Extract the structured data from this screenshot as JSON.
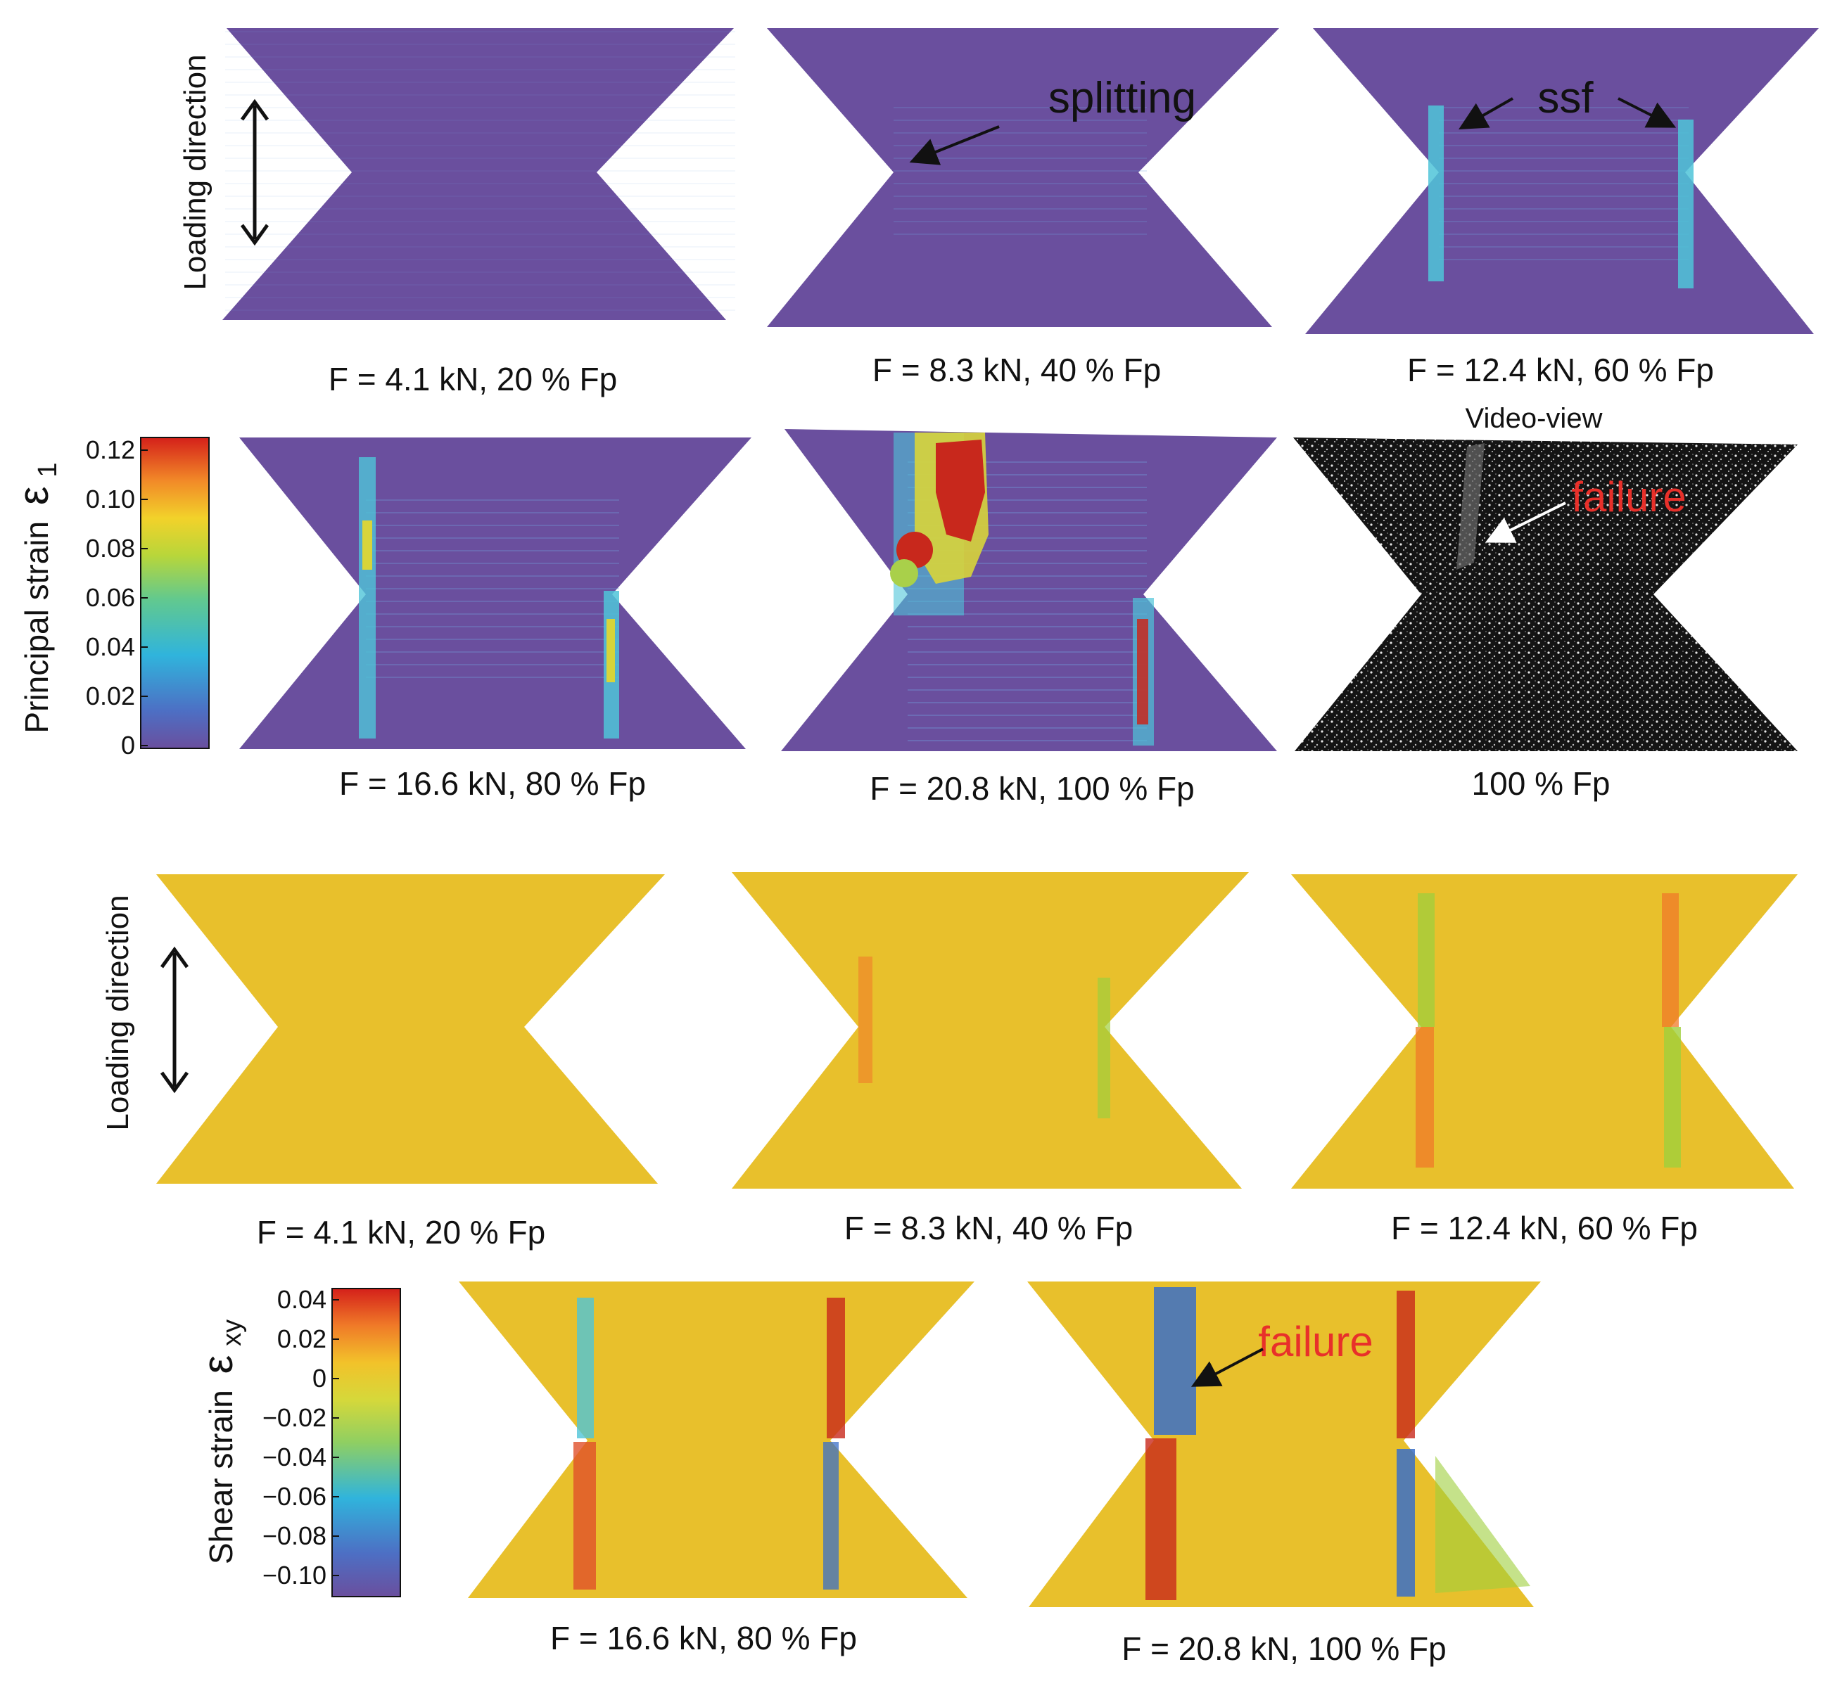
{
  "colors": {
    "principal_base": "#6a4f9e",
    "shear_base": "#e8c02c",
    "strain_red": "#c8281c",
    "strain_cyan": "#4fc4d8",
    "strain_blue": "#3a6fc8",
    "strain_green": "#9fcf3c",
    "annotation_red": "#e8302a",
    "video_bg": "#151515"
  },
  "icons": [
    "double-arrow-icon",
    "pointer-arrow-icon"
  ],
  "principal": {
    "axis_label": "Principal strain",
    "symbol": "ε",
    "subscript": "1",
    "ticks": [
      "0.12",
      "0.10",
      "0.08",
      "0.06",
      "0.04",
      "0.02",
      "0"
    ],
    "loading_label_row1": "Loading direction",
    "captions": {
      "p1": "F = 4.1 kN, 20 % Fp",
      "p2": "F = 8.3 kN, 40 % Fp",
      "p3": "F = 12.4 kN, 60 % Fp",
      "p4": "F = 16.6 kN, 80 % Fp",
      "p5": "F = 20.8 kN, 100 % Fp",
      "video": "100 % Fp"
    },
    "annotations": {
      "splitting": "splitting",
      "ssf": "ssf",
      "video_view": "Video-view",
      "failure": "failure"
    }
  },
  "shear": {
    "axis_label": "Shear strain",
    "symbol": "ε",
    "subscript": "xy",
    "ticks": [
      "0.04",
      "0.02",
      "0",
      "−0.02",
      "−0.04",
      "−0.06",
      "−0.08",
      "−0.10"
    ],
    "loading_label_row3": "Loading direction",
    "captions": {
      "s1": "F = 4.1 kN, 20 % Fp",
      "s2": "F = 8.3 kN, 40 % Fp",
      "s3": "F = 12.4 kN, 60 % Fp",
      "s4": "F = 16.6 kN, 80 % Fp",
      "s5": "F = 20.8 kN, 100 % Fp"
    },
    "annotations": {
      "failure": "failure"
    }
  }
}
